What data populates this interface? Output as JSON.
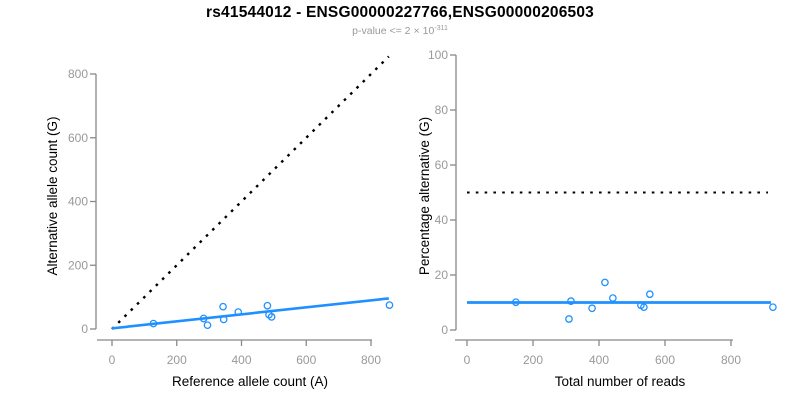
{
  "title": "rs41544012 - ENSG00000227766,ENSG00000206503",
  "subtitle": {
    "prefix": "p-value <= 2",
    "times": "×",
    "base": "10",
    "exponent": "-311"
  },
  "colors": {
    "points_and_fit": "#1E90FF",
    "reference_lines": "#000000",
    "axis": "#898989",
    "tick_labels": "#999999",
    "subtitle": "#999999"
  },
  "chart_data": [
    {
      "type": "scatter",
      "panel": "left",
      "xlabel": "Reference allele count (A)",
      "ylabel": "Alternative allele count (G)",
      "x_ticks": [
        0,
        200,
        400,
        600,
        800
      ],
      "y_ticks": [
        0,
        200,
        400,
        600,
        800
      ],
      "xlim": [
        0,
        860
      ],
      "ylim": [
        0,
        860
      ],
      "grid": false,
      "point_color": "#1E90FF",
      "points": [
        [
          128,
          17
        ],
        [
          283,
          33
        ],
        [
          295,
          12
        ],
        [
          343,
          70
        ],
        [
          345,
          30
        ],
        [
          390,
          53
        ],
        [
          480,
          73
        ],
        [
          485,
          45
        ],
        [
          493,
          38
        ],
        [
          857,
          75
        ]
      ],
      "lines": [
        {
          "name": "identity-line",
          "x1": 0,
          "y1": 0,
          "x2": 855,
          "y2": 855,
          "style": "dotted",
          "color": "#000000",
          "width": 2.4
        },
        {
          "name": "fit-line",
          "x1": 0,
          "y1": 2,
          "x2": 855,
          "y2": 96,
          "style": "solid",
          "color": "#1E90FF",
          "width": 2.6
        }
      ]
    },
    {
      "type": "scatter",
      "panel": "right",
      "xlabel": "Total number of reads",
      "ylabel": "Percentage alternative (G)",
      "x_ticks": [
        0,
        200,
        400,
        600,
        800
      ],
      "y_ticks": [
        0,
        20,
        40,
        60,
        80,
        100
      ],
      "xlim": [
        0,
        930
      ],
      "ylim": [
        0,
        100
      ],
      "grid": false,
      "point_color": "#1E90FF",
      "points": [
        [
          148,
          10.1
        ],
        [
          309,
          4.0
        ],
        [
          315,
          10.5
        ],
        [
          379,
          7.9
        ],
        [
          418,
          17.3
        ],
        [
          442,
          11.6
        ],
        [
          527,
          9.0
        ],
        [
          536,
          8.3
        ],
        [
          554,
          13.0
        ],
        [
          927,
          8.3
        ]
      ],
      "lines": [
        {
          "name": "fifty-percent-line",
          "x1": 0,
          "y1": 50,
          "x2": 912,
          "y2": 50,
          "style": "dotted",
          "color": "#000000",
          "width": 2.0
        },
        {
          "name": "mean-percentage-line",
          "x1": 0,
          "y1": 10,
          "x2": 921,
          "y2": 10,
          "style": "solid",
          "color": "#1E90FF",
          "width": 2.8
        }
      ]
    }
  ]
}
